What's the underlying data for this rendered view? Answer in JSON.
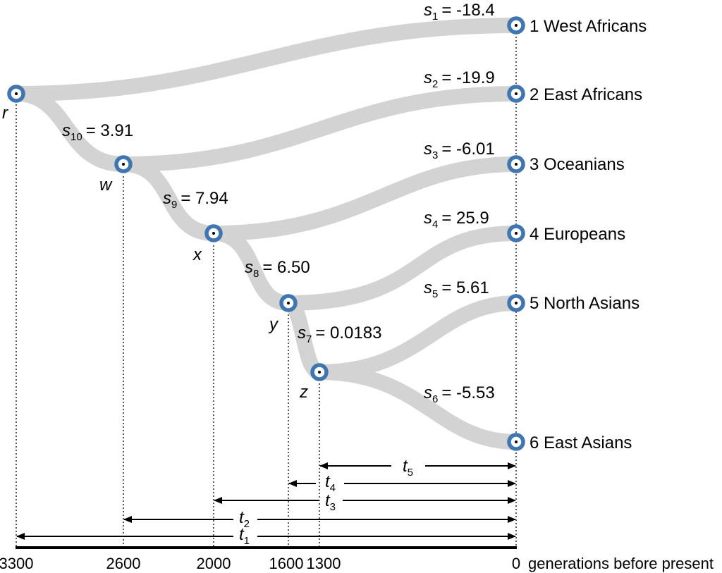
{
  "populations": [
    {
      "label": "1 West Africans",
      "branch": "s",
      "sub": "1",
      "value": "= -18.4"
    },
    {
      "label": "2 East Africans",
      "branch": "s",
      "sub": "2",
      "value": "= -19.9"
    },
    {
      "label": "3 Oceanians",
      "branch": "s",
      "sub": "3",
      "value": "= -6.01"
    },
    {
      "label": "4 Europeans",
      "branch": "s",
      "sub": "4",
      "value": "= 25.9"
    },
    {
      "label": "5 North Asians",
      "branch": "s",
      "sub": "5",
      "value": "= 5.61"
    },
    {
      "label": "6 East Asians",
      "branch": "s",
      "sub": "6",
      "value": "= -5.53"
    }
  ],
  "internal_branches": [
    {
      "branch": "s",
      "sub": "10",
      "value": "= 3.91"
    },
    {
      "branch": "s",
      "sub": "9",
      "value": "= 7.94"
    },
    {
      "branch": "s",
      "sub": "8",
      "value": "= 6.50"
    },
    {
      "branch": "s",
      "sub": "7",
      "value": "= 0.0183"
    }
  ],
  "nodes": [
    {
      "name": "r",
      "time": 3300
    },
    {
      "name": "w",
      "time": 2600
    },
    {
      "name": "x",
      "time": 2000
    },
    {
      "name": "y",
      "time": 1600
    },
    {
      "name": "z",
      "time": 1300
    }
  ],
  "time_spans": [
    {
      "name": "t",
      "sub": "5",
      "from": 1300
    },
    {
      "name": "t",
      "sub": "4",
      "from": 1600
    },
    {
      "name": "t",
      "sub": "3",
      "from": 2000
    },
    {
      "name": "t",
      "sub": "2",
      "from": 2600
    },
    {
      "name": "t",
      "sub": "1",
      "from": 3300
    }
  ],
  "axis": {
    "ticks": [
      "3300",
      "2600",
      "2000",
      "1600",
      "1300",
      "0"
    ],
    "label": "generations before present"
  },
  "colors": {
    "branch": "#d3d3d3",
    "node_ring": "#3f76b0",
    "node_center": "#ffffff"
  }
}
